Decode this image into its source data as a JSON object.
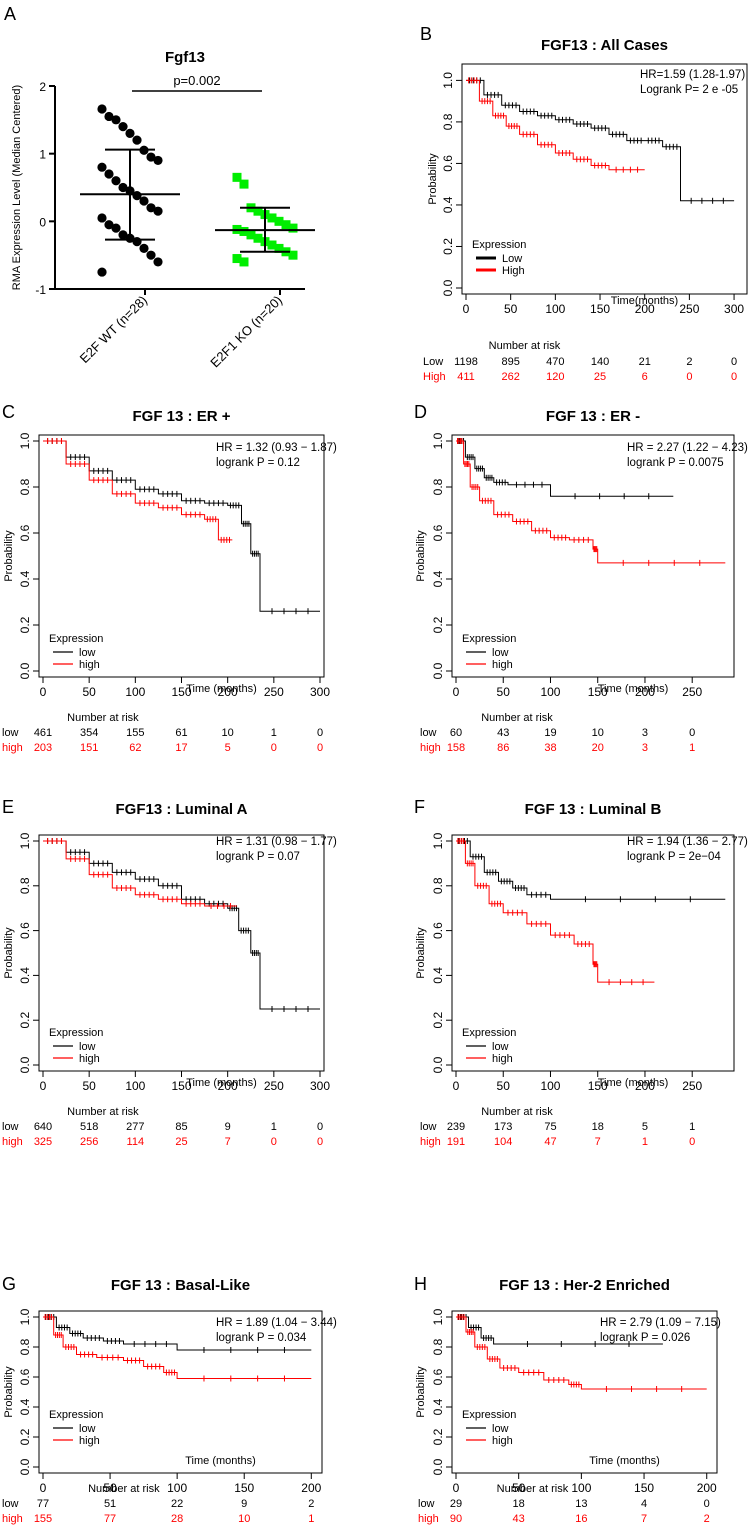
{
  "colors": {
    "low": "#000000",
    "high": "#ff0000",
    "wt": "#000000",
    "ko": "#00ee00"
  },
  "chart_data": [
    {
      "id": "A",
      "type": "scatter",
      "panel_label": "A",
      "title": "Fgf13",
      "ylabel": "RMA Expression Level (Median Centered)",
      "ylim": [
        -1,
        2
      ],
      "yticks": [
        -1,
        0,
        1,
        2
      ],
      "pvalue": "p=0.002",
      "groups": [
        {
          "name": "E2F WT (n=28)",
          "mean": 0.4,
          "sd_upper": 1.06,
          "sd_lower": -0.27,
          "values": [
            1.66,
            1.55,
            1.5,
            1.4,
            1.3,
            1.2,
            1.05,
            0.95,
            0.9,
            0.8,
            0.7,
            0.6,
            0.5,
            0.45,
            0.38,
            0.3,
            0.2,
            0.15,
            0.05,
            -0.05,
            -0.1,
            -0.2,
            -0.25,
            -0.3,
            -0.4,
            -0.5,
            -0.6,
            -0.75
          ]
        },
        {
          "name": "E2F1 KO (n=20)",
          "mean": -0.13,
          "sd_upper": 0.2,
          "sd_lower": -0.45,
          "values": [
            0.65,
            0.55,
            0.2,
            0.15,
            0.1,
            0.05,
            0.0,
            -0.05,
            -0.1,
            -0.12,
            -0.15,
            -0.2,
            -0.25,
            -0.3,
            -0.35,
            -0.4,
            -0.45,
            -0.5,
            -0.55,
            -0.6
          ]
        }
      ]
    },
    {
      "id": "B",
      "type": "line",
      "panel_label": "B",
      "title": "FGF13 : All Cases",
      "hr": "HR=1.59 (1.28-1.97)",
      "logrank": "Logrank P= 2 e -05",
      "xlabel": "Time(months)",
      "ylabel": "Probability",
      "xlim": [
        0,
        310
      ],
      "ylim": [
        0,
        1.05
      ],
      "xticks": [
        0,
        50,
        100,
        150,
        200,
        250,
        300
      ],
      "yticks": [
        "0.0",
        "0.2",
        "0.4",
        "0.6",
        "0.8",
        "1.0"
      ],
      "legend_title": "Expression",
      "legend": [
        "Low",
        "High"
      ],
      "series": [
        {
          "name": "Low",
          "x": [
            0,
            20,
            40,
            60,
            80,
            100,
            120,
            140,
            160,
            180,
            200,
            220,
            240,
            300
          ],
          "y": [
            1,
            0.93,
            0.88,
            0.85,
            0.83,
            0.81,
            0.79,
            0.77,
            0.74,
            0.71,
            0.71,
            0.68,
            0.42,
            0.42
          ]
        },
        {
          "name": "High",
          "x": [
            0,
            15,
            30,
            45,
            60,
            80,
            100,
            120,
            140,
            160,
            200
          ],
          "y": [
            1,
            0.9,
            0.83,
            0.78,
            0.74,
            0.69,
            0.65,
            0.62,
            0.59,
            0.57,
            0.57
          ]
        }
      ],
      "risk_header": "Number at risk",
      "risk_positions": [
        0,
        50,
        100,
        150,
        200,
        250,
        300
      ],
      "risk": [
        {
          "label": "Low",
          "values": [
            "1198",
            "895",
            "470",
            "140",
            "21",
            "2",
            "0"
          ]
        },
        {
          "label": "High",
          "values": [
            "411",
            "262",
            "120",
            "25",
            "6",
            "0",
            "0"
          ]
        }
      ]
    },
    {
      "id": "C",
      "type": "line",
      "panel_label": "C",
      "title": "FGF 13 : ER +",
      "hr": "HR = 1.32 (0.93 − 1.87)",
      "logrank": "logrank P = 0.12",
      "xlabel": "Time (months)",
      "ylabel": "Probability",
      "xlim": [
        0,
        300
      ],
      "ylim": [
        0,
        1
      ],
      "xticks": [
        0,
        50,
        100,
        150,
        200,
        250,
        300
      ],
      "yticks": [
        "0.0",
        "0.2",
        "0.4",
        "0.6",
        "0.8",
        "1.0"
      ],
      "legend_title": "Expression",
      "legend": [
        "low",
        "high"
      ],
      "series": [
        {
          "name": "low",
          "x": [
            0,
            25,
            50,
            75,
            100,
            125,
            150,
            175,
            200,
            215,
            225,
            235,
            300
          ],
          "y": [
            1,
            0.93,
            0.87,
            0.83,
            0.79,
            0.77,
            0.74,
            0.73,
            0.72,
            0.64,
            0.51,
            0.26,
            0.26
          ]
        },
        {
          "name": "high",
          "x": [
            0,
            25,
            50,
            75,
            100,
            125,
            150,
            175,
            190,
            205
          ],
          "y": [
            1,
            0.9,
            0.83,
            0.77,
            0.73,
            0.71,
            0.68,
            0.66,
            0.57,
            0.57
          ]
        }
      ],
      "risk_header": "Number at risk",
      "risk_positions": [
        0,
        50,
        100,
        150,
        200,
        250,
        300
      ],
      "risk": [
        {
          "label": "low",
          "values": [
            "461",
            "354",
            "155",
            "61",
            "10",
            "1",
            "0"
          ]
        },
        {
          "label": "high",
          "values": [
            "203",
            "151",
            "62",
            "17",
            "5",
            "0",
            "0"
          ]
        }
      ]
    },
    {
      "id": "D",
      "type": "line",
      "panel_label": "D",
      "title": "FGF 13 : ER -",
      "hr": "HR = 2.27 (1.22 − 4.23)",
      "logrank": "logrank P = 0.0075",
      "xlabel": "Time (months)",
      "ylabel": "Probability",
      "xlim": [
        0,
        290
      ],
      "ylim": [
        0,
        1
      ],
      "xticks": [
        0,
        50,
        100,
        150,
        200,
        250
      ],
      "yticks": [
        "0.0",
        "0.2",
        "0.4",
        "0.6",
        "0.8",
        "1.0"
      ],
      "legend_title": "Expression",
      "legend": [
        "low",
        "high"
      ],
      "series": [
        {
          "name": "low",
          "x": [
            0,
            10,
            20,
            30,
            40,
            55,
            100,
            230
          ],
          "y": [
            1,
            0.93,
            0.88,
            0.84,
            0.82,
            0.81,
            0.76,
            0.76
          ]
        },
        {
          "name": "high",
          "x": [
            0,
            8,
            15,
            25,
            40,
            60,
            80,
            100,
            120,
            145,
            150,
            285
          ],
          "y": [
            1,
            0.9,
            0.8,
            0.74,
            0.68,
            0.65,
            0.61,
            0.58,
            0.57,
            0.53,
            0.47,
            0.47
          ]
        }
      ],
      "risk_header": "Number at risk",
      "risk_positions": [
        0,
        50,
        100,
        150,
        200,
        250
      ],
      "risk": [
        {
          "label": "low",
          "values": [
            "60",
            "43",
            "19",
            "10",
            "3",
            "0"
          ]
        },
        {
          "label": "high",
          "values": [
            "158",
            "86",
            "38",
            "20",
            "3",
            "1"
          ]
        }
      ]
    },
    {
      "id": "E",
      "type": "line",
      "panel_label": "E",
      "title": "FGF13 : Luminal A",
      "hr": "HR = 1.31 (0.98 − 1.77)",
      "logrank": "logrank P = 0.07",
      "xlabel": "Time (months)",
      "ylabel": "Probability",
      "xlim": [
        0,
        300
      ],
      "ylim": [
        0,
        1
      ],
      "xticks": [
        0,
        50,
        100,
        150,
        200,
        250,
        300
      ],
      "yticks": [
        "0.0",
        "0.2",
        "0.4",
        "0.6",
        "0.8",
        "1.0"
      ],
      "legend_title": "Expression",
      "legend": [
        "low",
        "high"
      ],
      "series": [
        {
          "name": "low",
          "x": [
            0,
            25,
            50,
            75,
            100,
            125,
            150,
            175,
            200,
            212,
            225,
            235,
            300
          ],
          "y": [
            1,
            0.95,
            0.9,
            0.86,
            0.83,
            0.8,
            0.74,
            0.72,
            0.7,
            0.6,
            0.5,
            0.25,
            0.25
          ]
        },
        {
          "name": "high",
          "x": [
            0,
            25,
            50,
            75,
            100,
            125,
            150,
            175,
            210
          ],
          "y": [
            1,
            0.92,
            0.85,
            0.79,
            0.76,
            0.74,
            0.72,
            0.71,
            0.71
          ]
        }
      ],
      "risk_header": "Number at risk",
      "risk_positions": [
        0,
        50,
        100,
        150,
        200,
        250,
        300
      ],
      "risk": [
        {
          "label": "low",
          "values": [
            "640",
            "518",
            "277",
            "85",
            "9",
            "1",
            "0"
          ]
        },
        {
          "label": "high",
          "values": [
            "325",
            "256",
            "114",
            "25",
            "7",
            "0",
            "0"
          ]
        }
      ]
    },
    {
      "id": "F",
      "type": "line",
      "panel_label": "F",
      "title": "FGF 13 : Luminal B",
      "hr": "HR = 1.94 (1.36 − 2.77)",
      "logrank": "logrank P = 2e−04",
      "xlabel": "Time (months)",
      "ylabel": "Probability",
      "xlim": [
        0,
        290
      ],
      "ylim": [
        0,
        1
      ],
      "xticks": [
        0,
        50,
        100,
        150,
        200,
        250
      ],
      "yticks": [
        "0.0",
        "0.2",
        "0.4",
        "0.6",
        "0.8",
        "1.0"
      ],
      "legend_title": "Expression",
      "legend": [
        "low",
        "high"
      ],
      "series": [
        {
          "name": "low",
          "x": [
            0,
            15,
            30,
            45,
            60,
            75,
            100,
            285
          ],
          "y": [
            1,
            0.93,
            0.86,
            0.82,
            0.79,
            0.76,
            0.74,
            0.74
          ]
        },
        {
          "name": "high",
          "x": [
            0,
            10,
            20,
            35,
            50,
            75,
            100,
            125,
            145,
            150,
            210
          ],
          "y": [
            1,
            0.9,
            0.8,
            0.72,
            0.68,
            0.63,
            0.58,
            0.54,
            0.45,
            0.37,
            0.37
          ]
        }
      ],
      "risk_header": "Number at risk",
      "risk_positions": [
        0,
        50,
        100,
        150,
        200,
        250
      ],
      "risk": [
        {
          "label": "low",
          "values": [
            "239",
            "173",
            "75",
            "18",
            "5",
            "1"
          ]
        },
        {
          "label": "high",
          "values": [
            "191",
            "104",
            "47",
            "7",
            "1",
            "0"
          ]
        }
      ]
    },
    {
      "id": "G",
      "type": "line",
      "panel_label": "G",
      "title": "FGF 13 : Basal-Like",
      "hr": "HR = 1.89 (1.04 − 3.44)",
      "logrank": "logrank P = 0.034",
      "xlabel": "Time (months)",
      "ylabel": "Probability",
      "xlim": [
        0,
        205
      ],
      "ylim": [
        0,
        1
      ],
      "xticks": [
        0,
        50,
        100,
        150,
        200
      ],
      "yticks": [
        "0.0",
        "0.2",
        "0.4",
        "0.6",
        "0.8",
        "1.0"
      ],
      "legend_title": "Expression",
      "legend": [
        "low",
        "high"
      ],
      "series": [
        {
          "name": "low",
          "x": [
            0,
            10,
            20,
            30,
            45,
            60,
            100,
            200
          ],
          "y": [
            1,
            0.93,
            0.89,
            0.86,
            0.84,
            0.82,
            0.78,
            0.78
          ]
        },
        {
          "name": "high",
          "x": [
            0,
            8,
            15,
            25,
            40,
            60,
            75,
            90,
            100,
            200
          ],
          "y": [
            1,
            0.88,
            0.8,
            0.75,
            0.73,
            0.71,
            0.67,
            0.63,
            0.59,
            0.59
          ]
        }
      ],
      "risk_header": "Number at risk",
      "risk_positions": [
        0,
        50,
        100,
        150,
        200
      ],
      "risk": [
        {
          "label": "low",
          "values": [
            "77",
            "51",
            "22",
            "9",
            "2"
          ]
        },
        {
          "label": "high",
          "values": [
            "155",
            "77",
            "28",
            "10",
            "1"
          ]
        }
      ]
    },
    {
      "id": "H",
      "type": "line",
      "panel_label": "H",
      "title": "FGF 13 : Her-2 Enriched",
      "hr": "HR = 2.79 (1.09 − 7.15)",
      "logrank": "logrank P = 0.026",
      "xlabel": "Time (months)",
      "ylabel": "Probability",
      "xlim": [
        0,
        205
      ],
      "ylim": [
        0,
        1
      ],
      "xticks": [
        0,
        50,
        100,
        150,
        200
      ],
      "yticks": [
        "0.0",
        "0.2",
        "0.4",
        "0.6",
        "0.8",
        "1.0"
      ],
      "legend_title": "Expression",
      "legend": [
        "low",
        "high"
      ],
      "series": [
        {
          "name": "low",
          "x": [
            0,
            10,
            20,
            30,
            165
          ],
          "y": [
            1,
            0.93,
            0.86,
            0.82,
            0.82
          ]
        },
        {
          "name": "high",
          "x": [
            0,
            8,
            15,
            25,
            35,
            50,
            70,
            90,
            100,
            200
          ],
          "y": [
            1,
            0.9,
            0.8,
            0.72,
            0.66,
            0.63,
            0.58,
            0.55,
            0.52,
            0.52
          ]
        }
      ],
      "risk_header": "Number at risk",
      "risk_positions": [
        0,
        50,
        100,
        150,
        200
      ],
      "risk": [
        {
          "label": "low",
          "values": [
            "29",
            "18",
            "13",
            "4",
            "0"
          ]
        },
        {
          "label": "high",
          "values": [
            "90",
            "43",
            "16",
            "7",
            "2"
          ]
        }
      ]
    }
  ]
}
